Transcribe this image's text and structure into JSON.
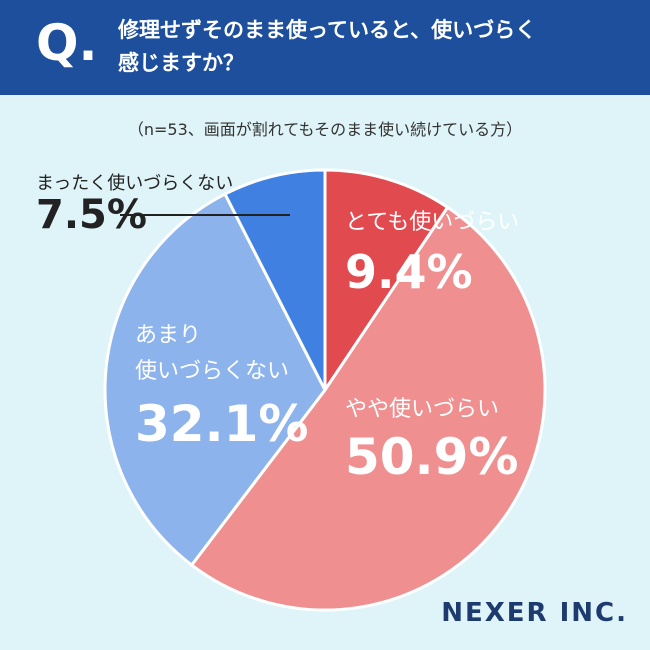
{
  "chart_data": {
    "type": "pie",
    "question_mark": "Q.",
    "title": "修理せずそのまま使っていると、使いづらく\n感じますか？",
    "subtitle": "（n=53、画面が割れてもそのまま使い続けている方）",
    "categories": [
      "とても使いづらい",
      "やや使いづらい",
      "あまり\n使いづらくない",
      "まったく使いづらくない"
    ],
    "values": [
      9.4,
      50.9,
      32.1,
      7.5
    ],
    "value_labels": [
      "9.4%",
      "50.9%",
      "32.1%",
      "7.5%"
    ],
    "colors": [
      "#e14a4f",
      "#ef8f90",
      "#8db3ec",
      "#3f80e0"
    ],
    "brand": "NEXER INC."
  }
}
